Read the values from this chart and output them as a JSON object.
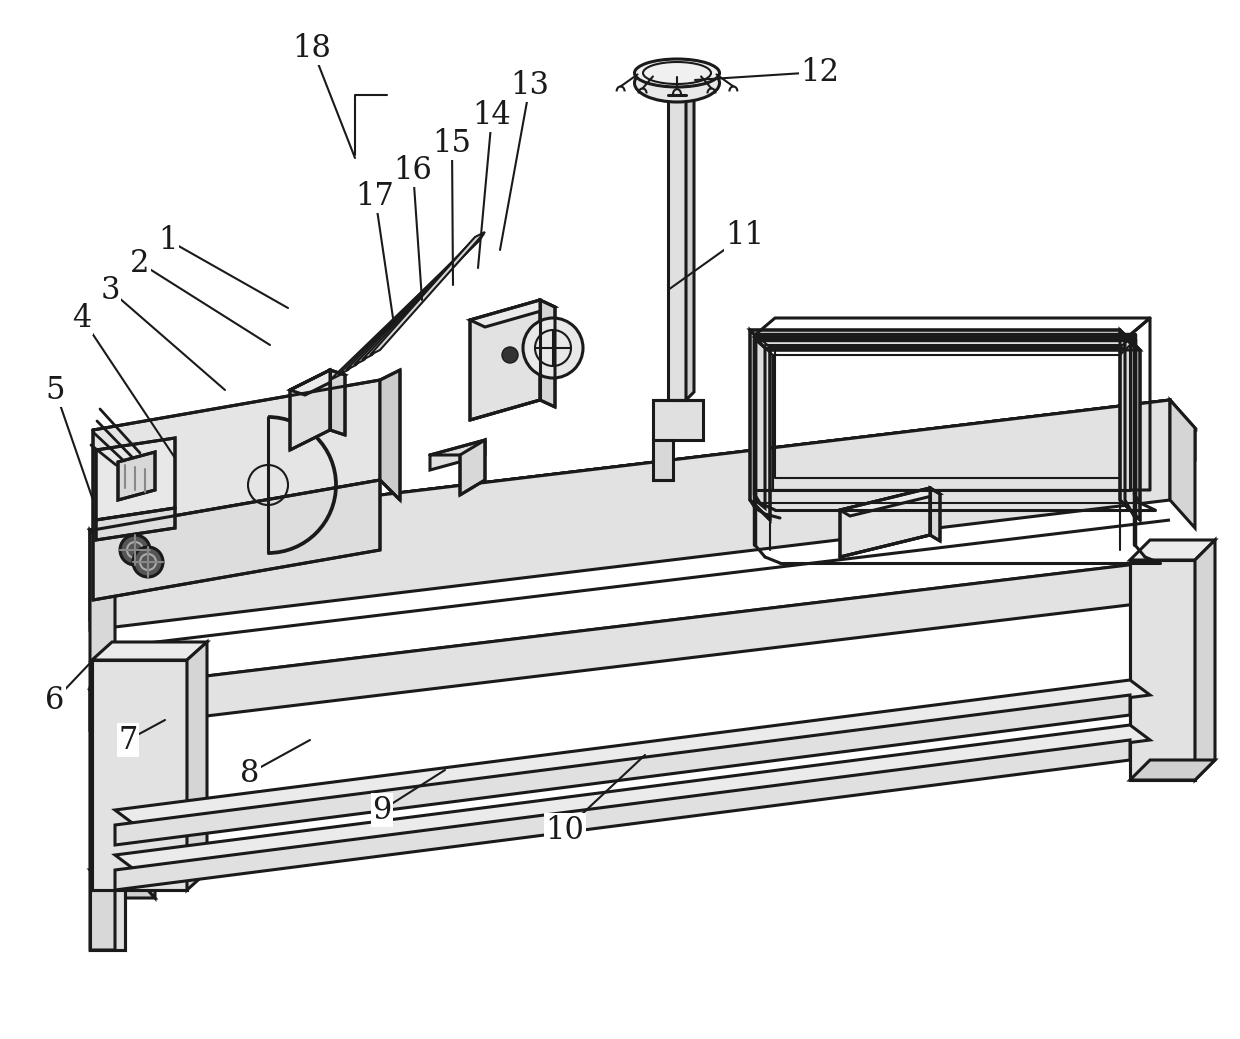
{
  "bg_color": "#ffffff",
  "line_color": "#1a1a1a",
  "lw": 2.2,
  "tlw": 1.5,
  "fs": 22,
  "figsize": [
    12.4,
    10.39
  ],
  "dpi": 100
}
